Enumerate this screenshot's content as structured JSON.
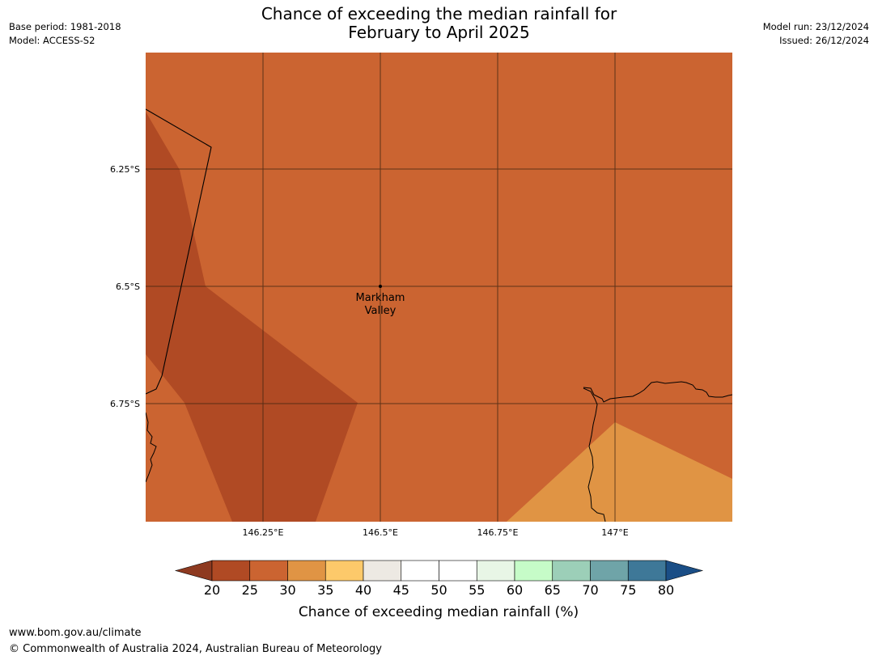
{
  "header": {
    "title_line1": "Chance of exceeding the median rainfall for",
    "title_line2": "February to April 2025",
    "base_period": "Base period: 1981-2018",
    "model": "Model: ACCESS-S2",
    "model_run": "Model run: 23/12/2024",
    "issued": "Issued: 26/12/2024"
  },
  "map": {
    "lat_labels": [
      "6.25°S",
      "6.5°S",
      "6.75°S"
    ],
    "lon_labels": [
      "146.25°E",
      "146.5°E",
      "146.75°E",
      "147°E"
    ],
    "place": {
      "name_line1": "Markham",
      "name_line2": "Valley"
    },
    "colors": {
      "band_20_25": "#b04a24",
      "band_25_30": "#cb6431",
      "band_30_35": "#e09444"
    }
  },
  "colorbar": {
    "ticks": [
      "20",
      "25",
      "30",
      "35",
      "40",
      "45",
      "50",
      "55",
      "60",
      "65",
      "70",
      "75",
      "80"
    ],
    "colors": [
      "#b04a24",
      "#cb6431",
      "#e09444",
      "#fdc96a",
      "#ede9e3",
      "#ffffff",
      "#ffffff",
      "#e8f6e6",
      "#c6fcc8",
      "#9ccfb8",
      "#6fa4a8",
      "#3e7898"
    ],
    "under_color": "#8e3a20",
    "over_color": "#1a4e86",
    "title": "Chance of exceeding median rainfall (%)"
  },
  "footer": {
    "url": "www.bom.gov.au/climate",
    "copyright": "© Commonwealth of Australia 2024, Australian Bureau of Meteorology"
  }
}
